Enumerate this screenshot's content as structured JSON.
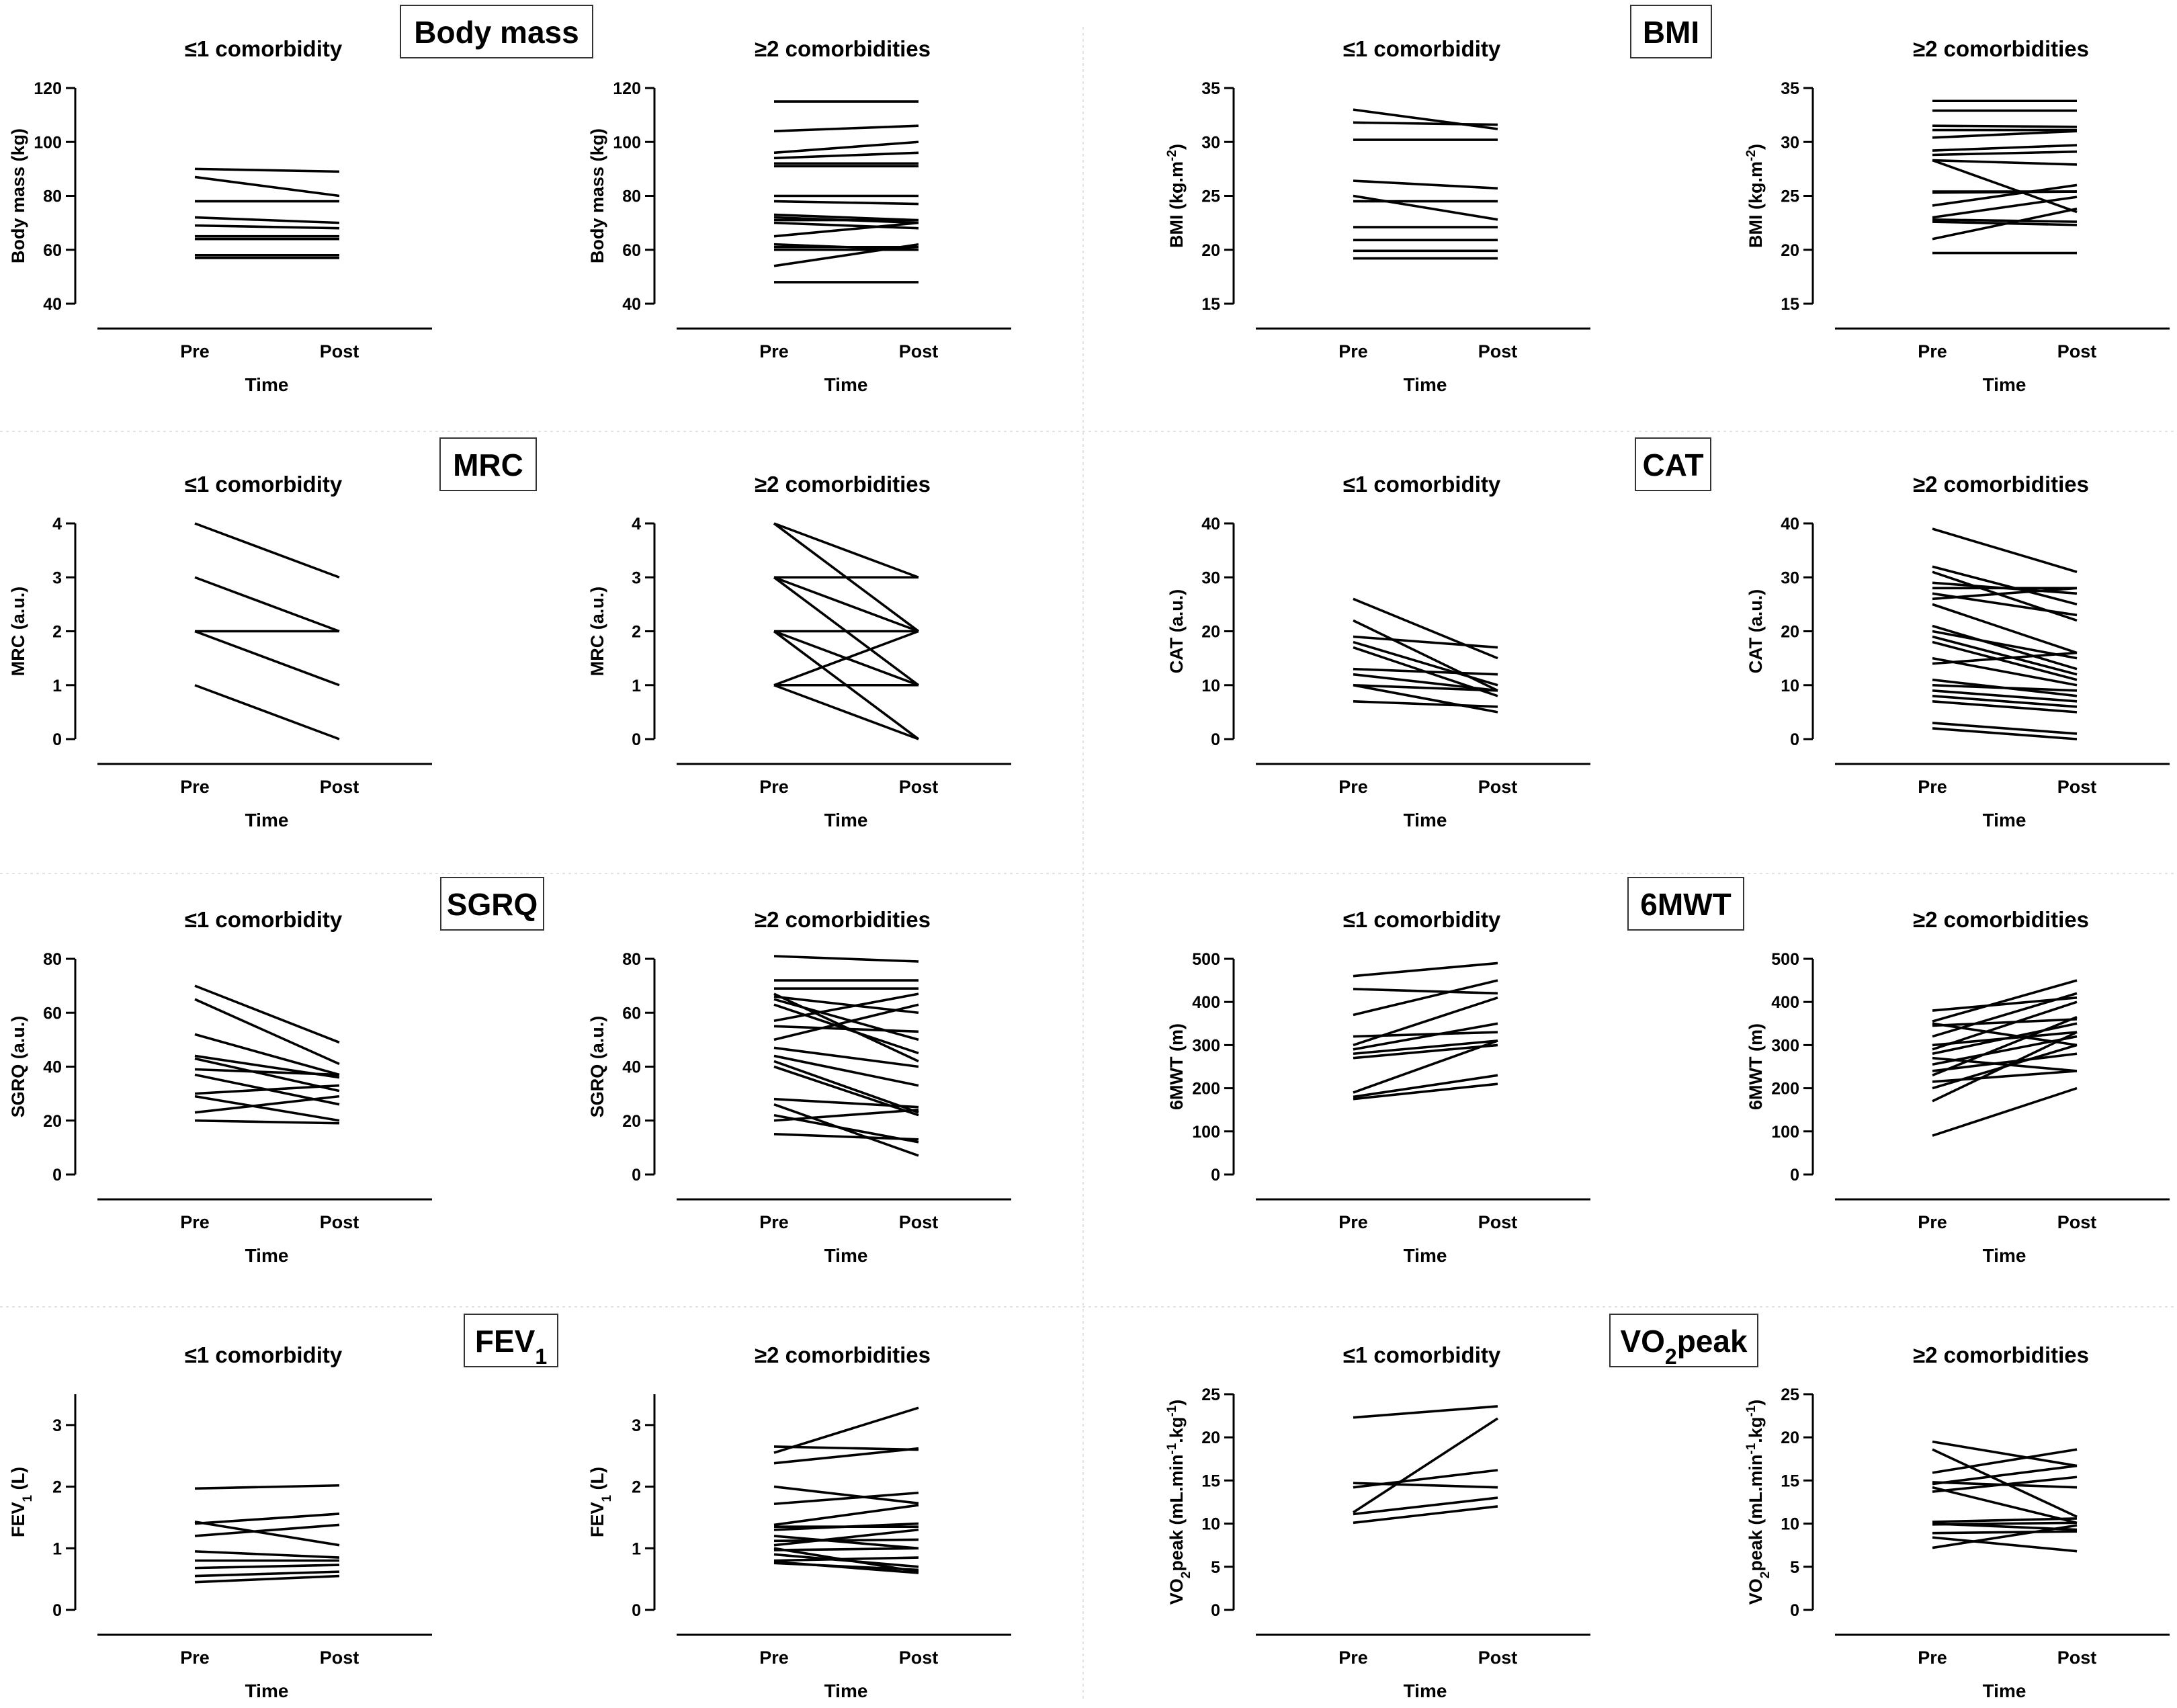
{
  "common": {
    "xlabel": "Time",
    "categories": [
      "Pre",
      "Post"
    ]
  },
  "groups": [
    {
      "label": "Body mass",
      "charts": [
        {
          "type": "line",
          "title": "≤1 comorbidity",
          "ylabel": "Body mass (kg)",
          "ylim": [
            40,
            120
          ],
          "yticks": [
            40,
            60,
            80,
            100,
            120
          ],
          "series": [
            [
              90,
              89
            ],
            [
              87,
              80
            ],
            [
              78,
              78
            ],
            [
              72,
              70
            ],
            [
              69,
              68
            ],
            [
              65,
              65
            ],
            [
              64,
              64
            ],
            [
              58,
              58
            ],
            [
              57,
              57
            ]
          ]
        },
        {
          "type": "line",
          "title": "≥2 comorbidities",
          "ylabel": "Body mass (kg)",
          "ylim": [
            40,
            120
          ],
          "yticks": [
            40,
            60,
            80,
            100,
            120
          ],
          "series": [
            [
              115,
              115
            ],
            [
              104,
              106
            ],
            [
              96,
              100
            ],
            [
              94,
              96
            ],
            [
              92,
              92
            ],
            [
              91,
              91
            ],
            [
              80,
              80
            ],
            [
              78,
              77
            ],
            [
              73,
              71
            ],
            [
              72,
              70
            ],
            [
              71,
              71
            ],
            [
              70,
              68
            ],
            [
              65,
              70
            ],
            [
              62,
              60
            ],
            [
              61,
              61
            ],
            [
              60,
              60
            ],
            [
              54,
              62
            ],
            [
              48,
              48
            ]
          ]
        }
      ]
    },
    {
      "label": "BMI",
      "charts": [
        {
          "type": "line",
          "title": "≤1 comorbidity",
          "ylabel": "BMI (kg.m-2)",
          "ylim": [
            15,
            35
          ],
          "yticks": [
            15,
            20,
            25,
            30,
            35
          ],
          "series": [
            [
              33,
              31.2
            ],
            [
              31.8,
              31.6
            ],
            [
              30.2,
              30.2
            ],
            [
              26.4,
              25.7
            ],
            [
              25,
              22.8
            ],
            [
              24.5,
              24.5
            ],
            [
              22.1,
              22.1
            ],
            [
              20.9,
              20.9
            ],
            [
              19.9,
              19.9
            ],
            [
              19.2,
              19.2
            ]
          ]
        },
        {
          "type": "line",
          "title": "≥2 comorbidities",
          "ylabel": "BMI (kg.m-2)",
          "ylim": [
            15,
            35
          ],
          "yticks": [
            15,
            20,
            25,
            30,
            35
          ],
          "series": [
            [
              33.8,
              33.8
            ],
            [
              32.9,
              32.9
            ],
            [
              31.5,
              31.4
            ],
            [
              31.1,
              31.1
            ],
            [
              30.4,
              31
            ],
            [
              29.2,
              29.7
            ],
            [
              28.8,
              29.1
            ],
            [
              28.3,
              27.9
            ],
            [
              28.3,
              23.5
            ],
            [
              25.4,
              25.4
            ],
            [
              25.3,
              25.4
            ],
            [
              24.1,
              26
            ],
            [
              23,
              24.9
            ],
            [
              22.8,
              22.6
            ],
            [
              22.6,
              22.3
            ],
            [
              21,
              23.8
            ],
            [
              19.7,
              19.7
            ]
          ]
        }
      ]
    },
    {
      "label": "MRC",
      "charts": [
        {
          "type": "line",
          "title": "≤1 comorbidity",
          "ylabel": "MRC (a.u.)",
          "ylim": [
            0,
            4
          ],
          "yticks": [
            0,
            1,
            2,
            3,
            4
          ],
          "series": [
            [
              4,
              3
            ],
            [
              3,
              2
            ],
            [
              2,
              2
            ],
            [
              2,
              1
            ],
            [
              1,
              0
            ]
          ]
        },
        {
          "type": "line",
          "title": "≥2 comorbidities",
          "ylabel": "MRC (a.u.)",
          "ylim": [
            0,
            4
          ],
          "yticks": [
            0,
            1,
            2,
            3,
            4
          ],
          "series": [
            [
              4,
              3
            ],
            [
              4,
              2
            ],
            [
              3,
              3
            ],
            [
              3,
              2
            ],
            [
              3,
              1
            ],
            [
              2,
              2
            ],
            [
              2,
              1
            ],
            [
              2,
              0
            ],
            [
              1,
              1
            ],
            [
              1,
              2
            ],
            [
              1,
              0
            ]
          ]
        }
      ]
    },
    {
      "label": "CAT",
      "charts": [
        {
          "type": "line",
          "title": "≤1 comorbidity",
          "ylabel": "CAT (a.u.)",
          "ylim": [
            0,
            40
          ],
          "yticks": [
            0,
            10,
            20,
            30,
            40
          ],
          "series": [
            [
              26,
              15
            ],
            [
              22,
              9
            ],
            [
              19,
              17
            ],
            [
              18,
              10
            ],
            [
              17,
              8
            ],
            [
              13,
              12
            ],
            [
              12,
              9
            ],
            [
              10,
              9
            ],
            [
              10,
              5
            ],
            [
              7,
              6
            ]
          ]
        },
        {
          "type": "line",
          "title": "≥2 comorbidities",
          "ylabel": "CAT (a.u.)",
          "ylim": [
            0,
            40
          ],
          "yticks": [
            0,
            10,
            20,
            30,
            40
          ],
          "series": [
            [
              39,
              31
            ],
            [
              32,
              25
            ],
            [
              31,
              22
            ],
            [
              29,
              27
            ],
            [
              28,
              28
            ],
            [
              27,
              23
            ],
            [
              26,
              28
            ],
            [
              25,
              16
            ],
            [
              21,
              13
            ],
            [
              20,
              15
            ],
            [
              19,
              12
            ],
            [
              18,
              11
            ],
            [
              15,
              10
            ],
            [
              14,
              16
            ],
            [
              11,
              8
            ],
            [
              10,
              9
            ],
            [
              9,
              7
            ],
            [
              8,
              6
            ],
            [
              7,
              5
            ],
            [
              3,
              1
            ],
            [
              2,
              0
            ]
          ]
        }
      ]
    },
    {
      "label": "SGRQ",
      "charts": [
        {
          "type": "line",
          "title": "≤1 comorbidity",
          "ylabel": "SGRQ (a.u.)",
          "ylim": [
            0,
            80
          ],
          "yticks": [
            0,
            20,
            40,
            60,
            80
          ],
          "series": [
            [
              70,
              49
            ],
            [
              65,
              41
            ],
            [
              52,
              37
            ],
            [
              44,
              36
            ],
            [
              43,
              31
            ],
            [
              39,
              37
            ],
            [
              37,
              26
            ],
            [
              30,
              33
            ],
            [
              29,
              20
            ],
            [
              23,
              29
            ],
            [
              20,
              19
            ]
          ]
        },
        {
          "type": "line",
          "title": "≥2 comorbidities",
          "ylabel": "SGRQ (a.u.)",
          "ylim": [
            0,
            80
          ],
          "yticks": [
            0,
            20,
            40,
            60,
            80
          ],
          "series": [
            [
              81,
              79
            ],
            [
              72,
              72
            ],
            [
              69,
              69
            ],
            [
              67,
              42
            ],
            [
              66,
              60
            ],
            [
              65,
              50
            ],
            [
              63,
              45
            ],
            [
              57,
              67
            ],
            [
              55,
              53
            ],
            [
              50,
              63
            ],
            [
              47,
              40
            ],
            [
              44,
              33
            ],
            [
              42,
              23
            ],
            [
              40,
              22
            ],
            [
              28,
              25
            ],
            [
              26,
              7
            ],
            [
              22,
              12
            ],
            [
              20,
              24
            ],
            [
              15,
              13
            ]
          ]
        }
      ]
    },
    {
      "label": "6MWT",
      "charts": [
        {
          "type": "line",
          "title": "≤1 comorbidity",
          "ylabel": "6MWT (m)",
          "ylim": [
            0,
            500
          ],
          "yticks": [
            0,
            100,
            200,
            300,
            400,
            500
          ],
          "series": [
            [
              460,
              490
            ],
            [
              430,
              420
            ],
            [
              370,
              450
            ],
            [
              320,
              330
            ],
            [
              300,
              410
            ],
            [
              290,
              350
            ],
            [
              280,
              310
            ],
            [
              270,
              300
            ],
            [
              190,
              310
            ],
            [
              180,
              230
            ],
            [
              175,
              210
            ]
          ]
        },
        {
          "type": "line",
          "title": "≥2 comorbidities",
          "ylabel": "6MWT (m)",
          "ylim": [
            0,
            500
          ],
          "yticks": [
            0,
            100,
            200,
            300,
            400,
            500
          ],
          "series": [
            [
              380,
              410
            ],
            [
              355,
              450
            ],
            [
              350,
              300
            ],
            [
              345,
              360
            ],
            [
              320,
              420
            ],
            [
              300,
              330
            ],
            [
              290,
              400
            ],
            [
              280,
              350
            ],
            [
              270,
              240
            ],
            [
              255,
              320
            ],
            [
              240,
              280
            ],
            [
              230,
              365
            ],
            [
              215,
              240
            ],
            [
              200,
              300
            ],
            [
              170,
              330
            ],
            [
              90,
              200
            ]
          ]
        }
      ]
    },
    {
      "label": "FEV1",
      "charts": [
        {
          "type": "line",
          "title": "≤1 comorbidity",
          "ylabel": "FEV1 (L)",
          "ylim": [
            0,
            3.5
          ],
          "yticks": [
            0,
            1,
            2,
            3
          ],
          "series": [
            [
              1.97,
              2.02
            ],
            [
              1.43,
              1.05
            ],
            [
              1.4,
              1.56
            ],
            [
              1.2,
              1.38
            ],
            [
              0.95,
              0.85
            ],
            [
              0.8,
              0.8
            ],
            [
              0.68,
              0.73
            ],
            [
              0.55,
              0.62
            ],
            [
              0.45,
              0.55
            ]
          ]
        },
        {
          "type": "line",
          "title": "≥2 comorbidities",
          "ylabel": "FEV1 (L)",
          "ylim": [
            0,
            3.5
          ],
          "yticks": [
            0,
            1,
            2,
            3
          ],
          "series": [
            [
              2.65,
              2.6
            ],
            [
              2.55,
              3.28
            ],
            [
              2.38,
              2.62
            ],
            [
              2.0,
              1.73
            ],
            [
              1.72,
              1.9
            ],
            [
              1.38,
              1.7
            ],
            [
              1.35,
              1.35
            ],
            [
              1.3,
              1.4
            ],
            [
              1.2,
              1.0
            ],
            [
              1.12,
              1.14
            ],
            [
              1.05,
              1.3
            ],
            [
              1.0,
              0.62
            ],
            [
              0.97,
              1.0
            ],
            [
              0.9,
              0.7
            ],
            [
              0.8,
              0.85
            ],
            [
              0.78,
              0.6
            ],
            [
              0.76,
              0.65
            ]
          ]
        }
      ]
    },
    {
      "label": "VO2peak",
      "charts": [
        {
          "type": "line",
          "title": "≤1 comorbidity",
          "ylabel": "VO2peak (mL.min-1.kg-1)",
          "ylim": [
            0,
            25
          ],
          "yticks": [
            0,
            5,
            10,
            15,
            20,
            25
          ],
          "series": [
            [
              22.3,
              23.6
            ],
            [
              14.7,
              14.2
            ],
            [
              14.2,
              16.2
            ],
            [
              11.3,
              22.2
            ],
            [
              11.1,
              13
            ],
            [
              10.1,
              12
            ]
          ]
        },
        {
          "type": "line",
          "title": "≥2 comorbidities",
          "ylabel": "VO2peak (mL.min-1.kg-1)",
          "ylim": [
            0,
            25
          ],
          "yticks": [
            0,
            5,
            10,
            15,
            20,
            25
          ],
          "series": [
            [
              19.5,
              16.7
            ],
            [
              18.6,
              10.8
            ],
            [
              15.9,
              18.6
            ],
            [
              14.8,
              14.2
            ],
            [
              14.6,
              16.7
            ],
            [
              14.2,
              10.1
            ],
            [
              13.7,
              15.4
            ],
            [
              10.2,
              10.6
            ],
            [
              10,
              9.3
            ],
            [
              9.9,
              10.1
            ],
            [
              8.9,
              9.1
            ],
            [
              8.4,
              6.8
            ],
            [
              7.2,
              9.8
            ]
          ]
        }
      ]
    }
  ]
}
